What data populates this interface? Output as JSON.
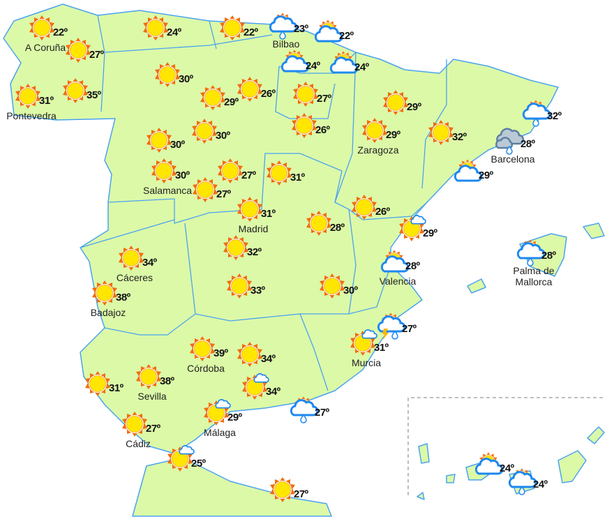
{
  "colors": {
    "land": "#dcf9a8",
    "border": "#4aa3f0",
    "sun_core": "#ffe600",
    "sun_rays": "#f26d0c",
    "cloud_stroke": "#1e88f0",
    "dark_cloud": "#b9c9d6",
    "dark_cloud_stroke": "#5d7fa0"
  },
  "markers": [
    {
      "icon": "sun",
      "temp": "22º",
      "label": "A Coruña"
    },
    {
      "icon": "sun",
      "temp": "27º",
      "label": ""
    },
    {
      "icon": "sun",
      "temp": "31º",
      "label": "Pontevedra"
    },
    {
      "icon": "sun",
      "temp": "35º",
      "label": ""
    },
    {
      "icon": "sun",
      "temp": "24º",
      "label": ""
    },
    {
      "icon": "sun",
      "temp": "22º",
      "label": ""
    },
    {
      "icon": "sun-cloud-rain",
      "temp": "23º",
      "label": "Bilbao"
    },
    {
      "icon": "sun-cloud",
      "temp": "22º",
      "label": ""
    },
    {
      "icon": "sun-cloud",
      "temp": "24º",
      "label": ""
    },
    {
      "icon": "sun-cloud",
      "temp": "24º",
      "label": ""
    },
    {
      "icon": "sun",
      "temp": "30º",
      "label": ""
    },
    {
      "icon": "sun",
      "temp": "29º",
      "label": ""
    },
    {
      "icon": "sun",
      "temp": "26º",
      "label": ""
    },
    {
      "icon": "sun",
      "temp": "27º",
      "label": ""
    },
    {
      "icon": "sun",
      "temp": "26º",
      "label": ""
    },
    {
      "icon": "sun",
      "temp": "30º",
      "label": ""
    },
    {
      "icon": "sun",
      "temp": "30º",
      "label": ""
    },
    {
      "icon": "sun",
      "temp": "30º",
      "label": "Salamanca"
    },
    {
      "icon": "sun",
      "temp": "27º",
      "label": ""
    },
    {
      "icon": "sun",
      "temp": "27º",
      "label": ""
    },
    {
      "icon": "sun",
      "temp": "31º",
      "label": ""
    },
    {
      "icon": "sun",
      "temp": "31º",
      "label": "Madrid"
    },
    {
      "icon": "sun",
      "temp": "29º",
      "label": ""
    },
    {
      "icon": "sun",
      "temp": "29º",
      "label": "Zaragoza"
    },
    {
      "icon": "sun",
      "temp": "32º",
      "label": ""
    },
    {
      "icon": "sun-cloud-rain",
      "temp": "32º",
      "label": ""
    },
    {
      "icon": "dark-cloud-rain",
      "temp": "28º",
      "label": "Barcelona"
    },
    {
      "icon": "sun-cloud",
      "temp": "29º",
      "label": ""
    },
    {
      "icon": "sun",
      "temp": "26º",
      "label": ""
    },
    {
      "icon": "sun-small-cloud",
      "temp": "29º",
      "label": ""
    },
    {
      "icon": "sun-cloud",
      "temp": "28º",
      "label": "Valencia"
    },
    {
      "icon": "sun",
      "temp": "28º",
      "label": ""
    },
    {
      "icon": "sun",
      "temp": "32º",
      "label": ""
    },
    {
      "icon": "sun",
      "temp": "34º",
      "label": "Cáceres"
    },
    {
      "icon": "sun",
      "temp": "38º",
      "label": "Badajoz"
    },
    {
      "icon": "sun",
      "temp": "33º",
      "label": ""
    },
    {
      "icon": "sun",
      "temp": "30º",
      "label": ""
    },
    {
      "icon": "sun-storm",
      "temp": "27º",
      "label": ""
    },
    {
      "icon": "sun-small-cloud",
      "temp": "31º",
      "label": "Murcia"
    },
    {
      "icon": "sun",
      "temp": "39º",
      "label": "Córdoba"
    },
    {
      "icon": "sun",
      "temp": "34º",
      "label": ""
    },
    {
      "icon": "sun",
      "temp": "38º",
      "label": "Sevilla"
    },
    {
      "icon": "sun",
      "temp": "31º",
      "label": ""
    },
    {
      "icon": "sun-small-cloud",
      "temp": "34º",
      "label": ""
    },
    {
      "icon": "sun-cloud-rain",
      "temp": "27º",
      "label": ""
    },
    {
      "icon": "sun-small-cloud",
      "temp": "29º",
      "label": "Málaga"
    },
    {
      "icon": "sun",
      "temp": "27º",
      "label": "Cádiz"
    },
    {
      "icon": "sun-small-cloud",
      "temp": "25º",
      "label": ""
    },
    {
      "icon": "sun",
      "temp": "27º",
      "label": ""
    },
    {
      "icon": "sun-cloud-rain",
      "temp": "28º",
      "label": "Palma de Mallorca"
    },
    {
      "icon": "sun-cloud",
      "temp": "24º",
      "label": ""
    },
    {
      "icon": "sun-cloud-rain",
      "temp": "24º",
      "label": ""
    }
  ]
}
